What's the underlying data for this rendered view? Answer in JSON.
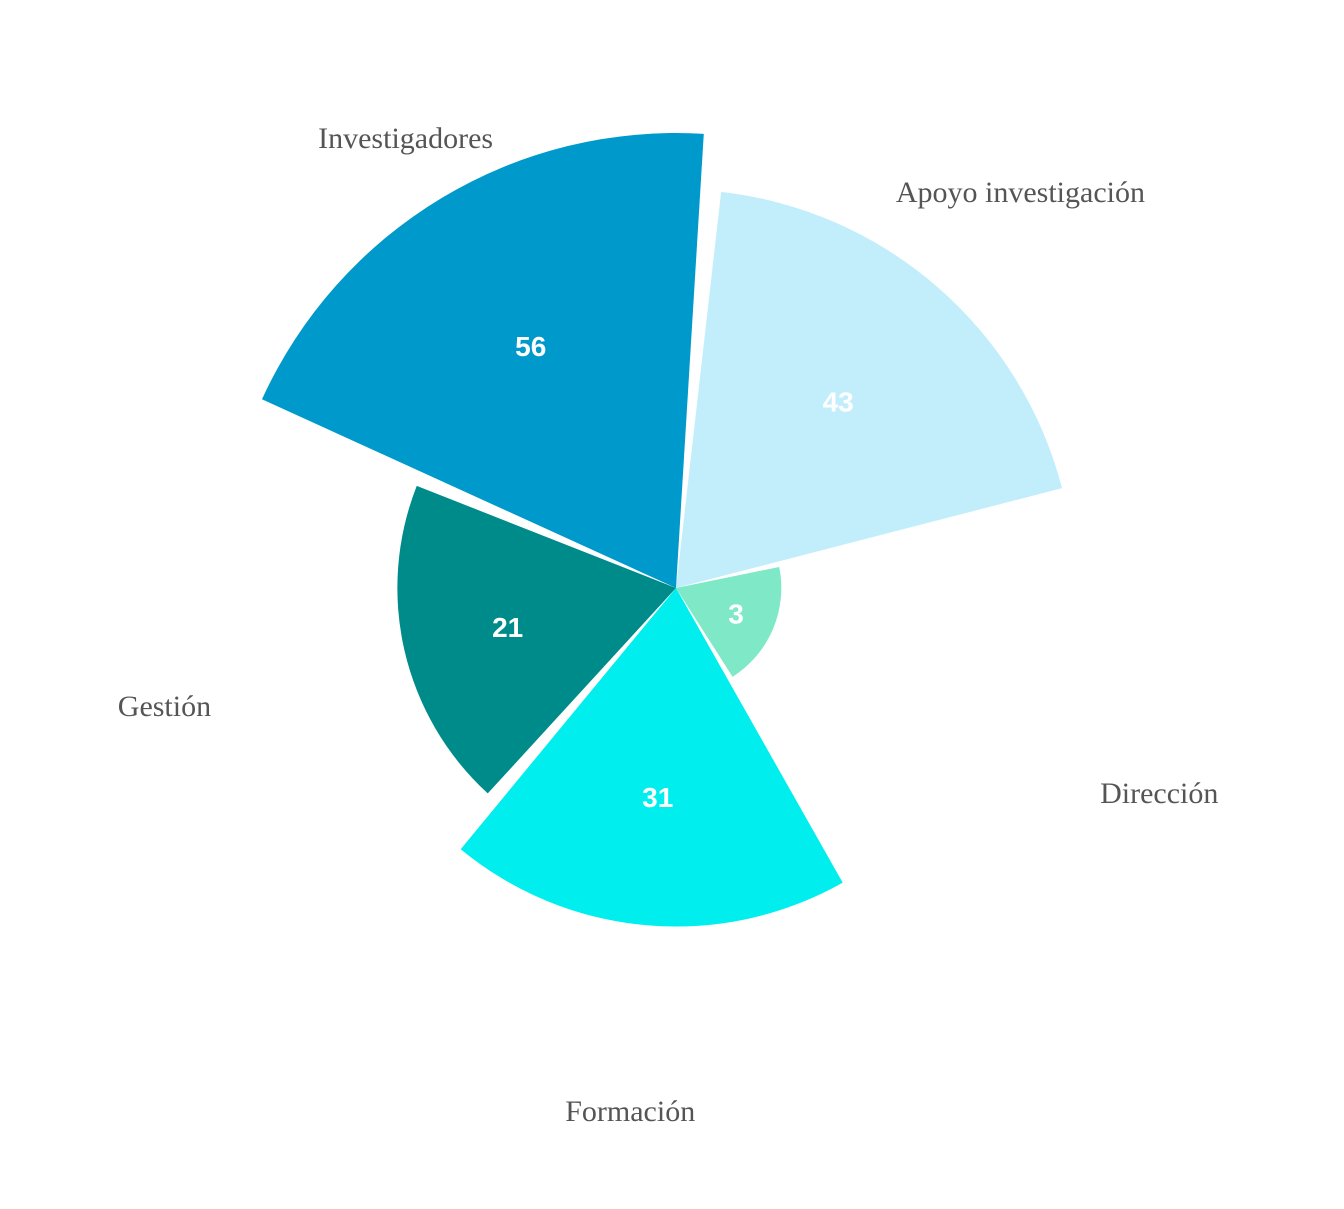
{
  "chart_data": {
    "type": "polar-area",
    "title": "",
    "categories": [
      "Apoyo investigación",
      "Dirección",
      "Formación",
      "Gestión",
      "Investigadores"
    ],
    "values": [
      43,
      3,
      31,
      21,
      56
    ],
    "colors": [
      "#c2eefc",
      "#7fe8c6",
      "#00eeee",
      "#008b8b",
      "#0099cc"
    ],
    "value_labels": [
      "43",
      "3",
      "31",
      "21",
      "56"
    ],
    "value_label_color": "#ffffff",
    "category_label_color": "#555555",
    "ylim": [
      0,
      56
    ],
    "start_angle_deg": 5,
    "grid": false,
    "legend": "none"
  }
}
